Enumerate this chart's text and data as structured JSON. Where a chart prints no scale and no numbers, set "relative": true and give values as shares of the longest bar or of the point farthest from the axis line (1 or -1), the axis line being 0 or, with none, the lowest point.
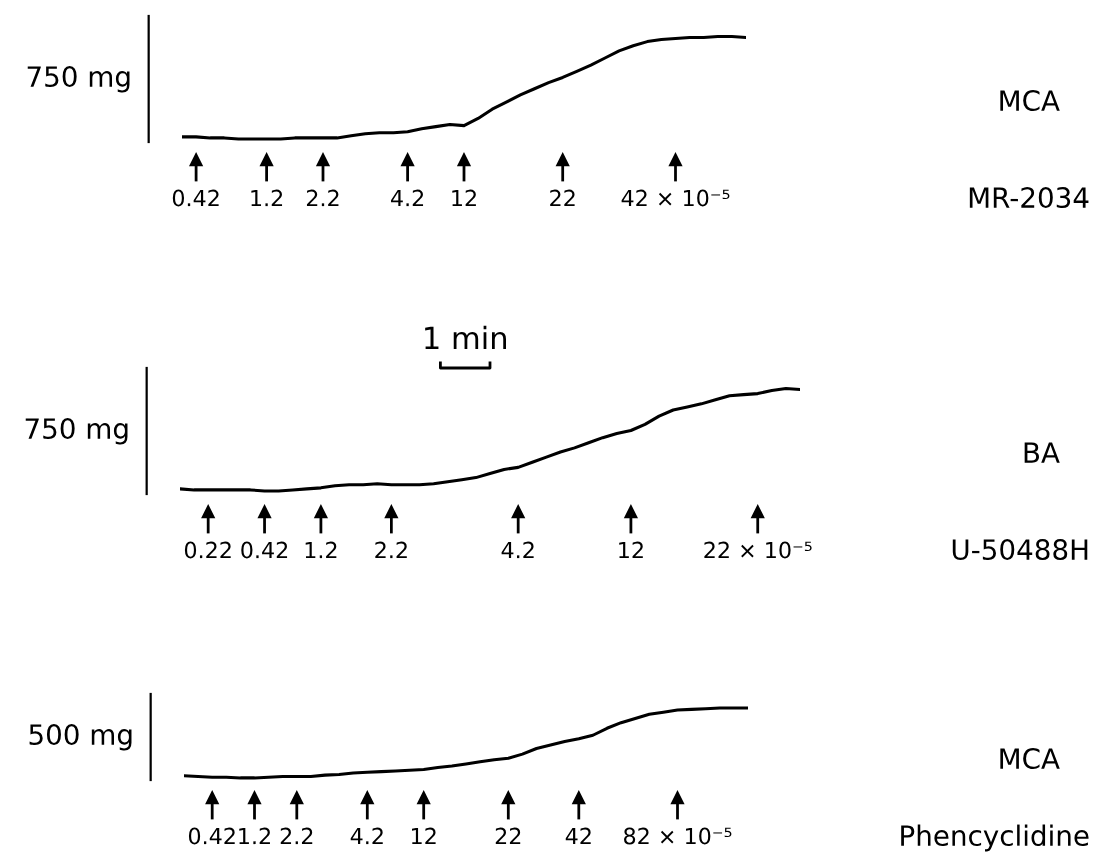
{
  "chart_data": [
    {
      "type": "line",
      "relative": true,
      "ylabel": "750 mg",
      "color": "#000000",
      "categories": [
        null,
        "0.42",
        null,
        null,
        null,
        null,
        "1.2",
        null,
        null,
        null,
        "2.2",
        null,
        null,
        null,
        null,
        null,
        "4.2",
        null,
        null,
        null,
        "12",
        null,
        null,
        null,
        null,
        null,
        null,
        "22",
        null,
        null,
        null,
        null,
        null,
        null,
        null,
        "42 × 10⁻⁵",
        null,
        null,
        null,
        null,
        null
      ],
      "values": [
        0.02,
        0.02,
        0.01,
        0.01,
        0,
        0,
        0,
        0,
        0.01,
        0.01,
        0.01,
        0.01,
        0.03,
        0.05,
        0.06,
        0.06,
        0.07,
        0.1,
        0.12,
        0.14,
        0.13,
        0.2,
        0.29,
        0.36,
        0.43,
        0.49,
        0.55,
        0.6,
        0.66,
        0.72,
        0.79,
        0.86,
        0.91,
        0.95,
        0.97,
        0.98,
        0.99,
        0.99,
        1,
        1,
        0.99
      ],
      "annotations": [
        "MCA",
        "MR-2034"
      ]
    },
    {
      "type": "line",
      "relative": true,
      "ylabel": "750 mg",
      "color": "#000000",
      "categories": [
        null,
        null,
        "0.22",
        null,
        null,
        null,
        "0.42",
        null,
        null,
        null,
        "1.2",
        null,
        null,
        null,
        null,
        "2.2",
        null,
        null,
        null,
        null,
        null,
        null,
        null,
        null,
        "4.2",
        null,
        null,
        null,
        null,
        null,
        null,
        null,
        "12",
        null,
        null,
        null,
        null,
        null,
        null,
        null,
        null,
        "22 × 10⁻⁵",
        null,
        null,
        null
      ],
      "values": [
        0.02,
        0.01,
        0.01,
        0.01,
        0.01,
        0.01,
        0,
        0,
        0.01,
        0.02,
        0.03,
        0.05,
        0.06,
        0.06,
        0.07,
        0.06,
        0.06,
        0.06,
        0.07,
        0.09,
        0.11,
        0.13,
        0.17,
        0.21,
        0.23,
        0.28,
        0.33,
        0.38,
        0.42,
        0.47,
        0.52,
        0.56,
        0.59,
        0.65,
        0.73,
        0.79,
        0.82,
        0.85,
        0.89,
        0.93,
        0.94,
        0.95,
        0.98,
        1,
        0.99
      ],
      "annotations": [
        "BA",
        "U-50488H",
        "1 min"
      ]
    },
    {
      "type": "line",
      "relative": true,
      "ylabel": "500 mg",
      "color": "#000000",
      "categories": [
        null,
        null,
        "0.42",
        null,
        null,
        "1.2",
        null,
        null,
        "2.2",
        null,
        null,
        null,
        null,
        "4.2",
        null,
        null,
        null,
        "12",
        null,
        null,
        null,
        null,
        null,
        "22",
        null,
        null,
        null,
        null,
        "42",
        null,
        null,
        null,
        null,
        null,
        null,
        "82 × 10⁻⁵",
        null,
        null,
        null,
        null,
        null
      ],
      "values": [
        0.03,
        0.02,
        0.01,
        0.01,
        0,
        0,
        0.01,
        0.02,
        0.02,
        0.02,
        0.04,
        0.05,
        0.07,
        0.08,
        0.09,
        0.1,
        0.11,
        0.12,
        0.15,
        0.17,
        0.2,
        0.23,
        0.26,
        0.28,
        0.34,
        0.42,
        0.47,
        0.52,
        0.56,
        0.61,
        0.71,
        0.79,
        0.85,
        0.91,
        0.94,
        0.97,
        0.98,
        0.99,
        1,
        1,
        1
      ],
      "annotations": [
        "MCA",
        "Phencyclidine"
      ]
    }
  ]
}
